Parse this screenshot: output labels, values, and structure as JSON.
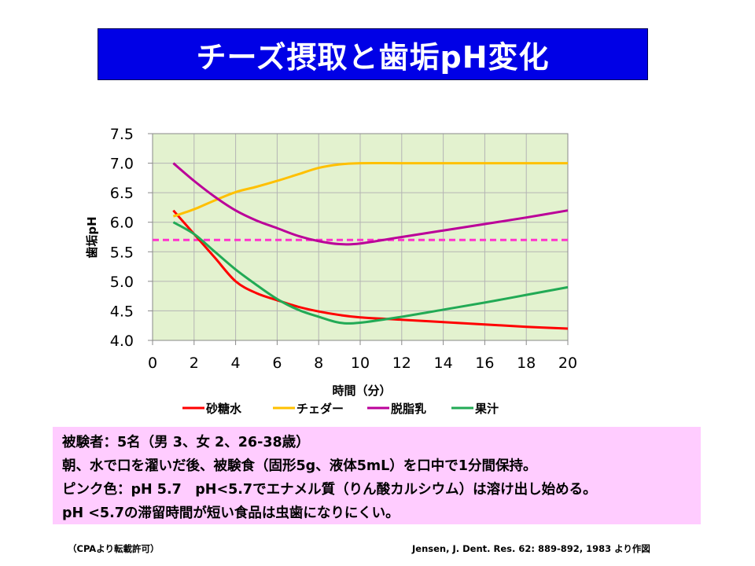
{
  "title": "チーズ摂取と歯垢pH変化",
  "chart_data": {
    "type": "line",
    "xlabel": "時間（分）",
    "ylabel": "歯垢pH",
    "xlim": [
      0,
      20
    ],
    "ylim": [
      4.0,
      7.5
    ],
    "x_ticks": [
      "0",
      "2",
      "4",
      "6",
      "8",
      "10",
      "12",
      "14",
      "16",
      "18",
      "20"
    ],
    "y_ticks": [
      "7.5",
      "7.0",
      "6.5",
      "6.0",
      "5.5",
      "5.0",
      "4.5",
      "4.0"
    ],
    "grid": true,
    "legend_position": "bottom",
    "reference_line": {
      "y": 5.7,
      "color": "#ff33cc",
      "style": "dashed"
    },
    "series": [
      {
        "name": "砂糖水",
        "color": "#ff0000",
        "x": [
          1,
          2,
          3,
          4,
          5,
          6,
          7,
          8,
          9,
          10,
          12,
          14,
          16,
          18,
          20
        ],
        "y": [
          6.2,
          5.8,
          5.4,
          5.0,
          4.8,
          4.68,
          4.57,
          4.49,
          4.43,
          4.39,
          4.35,
          4.31,
          4.27,
          4.23,
          4.2
        ]
      },
      {
        "name": "チェダー",
        "color": "#ffc000",
        "x": [
          1,
          2,
          3,
          4,
          5,
          6,
          7,
          8,
          9,
          10,
          12,
          14,
          16,
          18,
          20
        ],
        "y": [
          6.1,
          6.22,
          6.37,
          6.51,
          6.6,
          6.7,
          6.81,
          6.92,
          6.98,
          7.0,
          7.0,
          7.0,
          7.0,
          7.0,
          7.0
        ]
      },
      {
        "name": "脱脂乳",
        "color": "#bb0099",
        "x": [
          1,
          2,
          3,
          4,
          5,
          6,
          7,
          8,
          9,
          10,
          12,
          14,
          16,
          18,
          20
        ],
        "y": [
          7.0,
          6.7,
          6.43,
          6.2,
          6.03,
          5.9,
          5.77,
          5.68,
          5.63,
          5.64,
          5.75,
          5.86,
          5.97,
          6.08,
          6.2
        ]
      },
      {
        "name": "果汁",
        "color": "#22aa55",
        "x": [
          1,
          2,
          3,
          4,
          5,
          6,
          7,
          8,
          9,
          10,
          12,
          14,
          16,
          18,
          20
        ],
        "y": [
          6.0,
          5.8,
          5.5,
          5.2,
          4.94,
          4.7,
          4.52,
          4.4,
          4.3,
          4.3,
          4.4,
          4.52,
          4.64,
          4.77,
          4.9
        ]
      }
    ]
  },
  "notes": [
    "被験者：5名（男 3、女 2、26-38歳）",
    "朝、水で口を濯いだ後、被験食（固形5g、液体5mL）を口中で1分間保持。",
    "ピンク色：pH 5.7　pH<5.7でエナメル質（りん酸カルシウム）は溶け出し始める。",
    "pH <5.7の滞留時間が短い食品は虫歯になりにくい。"
  ],
  "footer_left": "（CPAより転載許可）",
  "footer_right": "Jensen, J. Dent. Res. 62: 889-892, 1983 より作図",
  "colors": {
    "title_bg": "#0000e6",
    "plot_bg": "#e3f2cf",
    "note_bg": "#ffccff"
  }
}
